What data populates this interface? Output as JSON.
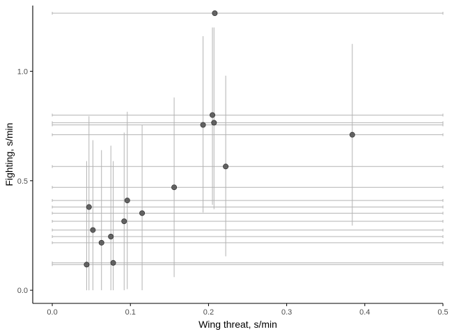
{
  "chart_data": {
    "type": "scatter",
    "xlabel": "Wing threat, s/min",
    "ylabel": "Fighting, s/min",
    "xlim": [
      -0.025,
      0.5
    ],
    "ylim": [
      -0.06,
      1.3
    ],
    "x_ticks": [
      0.0,
      0.1,
      0.2,
      0.3,
      0.4,
      0.5
    ],
    "x_tick_labels": [
      "0.0",
      "0.1",
      "0.2",
      "0.3",
      "0.4",
      "0.5"
    ],
    "y_ticks": [
      0.0,
      0.5,
      1.0
    ],
    "y_tick_labels": [
      "0.0",
      "0.5",
      "1.0"
    ],
    "grid": false,
    "error_bars": "horizontal and vertical ranges shown as light grey lines",
    "points": [
      {
        "x": 0.208,
        "y": 1.265,
        "xerr": [
          0.0,
          0.5
        ],
        "yerr": [
          1.265,
          1.265
        ]
      },
      {
        "x": 0.205,
        "y": 0.8,
        "xerr": [
          0.0,
          0.5
        ],
        "yerr": [
          0.39,
          1.2
        ]
      },
      {
        "x": 0.207,
        "y": 0.765,
        "xerr": [
          0.0,
          0.5
        ],
        "yerr": [
          0.37,
          1.2
        ]
      },
      {
        "x": 0.193,
        "y": 0.755,
        "xerr": [
          0.0,
          0.5
        ],
        "yerr": [
          0.355,
          1.16
        ]
      },
      {
        "x": 0.384,
        "y": 0.71,
        "xerr": [
          0.0,
          0.5
        ],
        "yerr": [
          0.295,
          1.125
        ]
      },
      {
        "x": 0.222,
        "y": 0.565,
        "xerr": [
          0.0,
          0.5
        ],
        "yerr": [
          0.155,
          0.98
        ]
      },
      {
        "x": 0.156,
        "y": 0.47,
        "xerr": [
          0.0,
          0.5
        ],
        "yerr": [
          0.06,
          0.88
        ]
      },
      {
        "x": 0.096,
        "y": 0.41,
        "xerr": [
          0.0,
          0.5
        ],
        "yerr": [
          0.005,
          0.815
        ]
      },
      {
        "x": 0.047,
        "y": 0.38,
        "xerr": [
          0.0,
          0.5
        ],
        "yerr": [
          0.0,
          0.795
        ]
      },
      {
        "x": 0.115,
        "y": 0.352,
        "xerr": [
          0.0,
          0.5
        ],
        "yerr": [
          0.0,
          0.755
        ]
      },
      {
        "x": 0.092,
        "y": 0.315,
        "xerr": [
          0.0,
          0.5
        ],
        "yerr": [
          0.0,
          0.72
        ]
      },
      {
        "x": 0.052,
        "y": 0.275,
        "xerr": [
          0.0,
          0.5
        ],
        "yerr": [
          0.0,
          0.685
        ]
      },
      {
        "x": 0.075,
        "y": 0.245,
        "xerr": [
          0.0,
          0.5
        ],
        "yerr": [
          0.0,
          0.66
        ]
      },
      {
        "x": 0.063,
        "y": 0.217,
        "xerr": [
          0.0,
          0.5
        ],
        "yerr": [
          0.0,
          0.64
        ]
      },
      {
        "x": 0.078,
        "y": 0.125,
        "xerr": [
          0.0,
          0.5
        ],
        "yerr": [
          0.0,
          0.59
        ]
      },
      {
        "x": 0.044,
        "y": 0.117,
        "xerr": [
          0.0,
          0.5
        ],
        "yerr": [
          0.0,
          0.59
        ]
      }
    ],
    "colors": {
      "point_fill": "#4d4d4d",
      "point_stroke": "#333333",
      "errorbar": "#b3b3b3",
      "axis": "#000000",
      "tick_text": "#4d4d4d"
    }
  }
}
